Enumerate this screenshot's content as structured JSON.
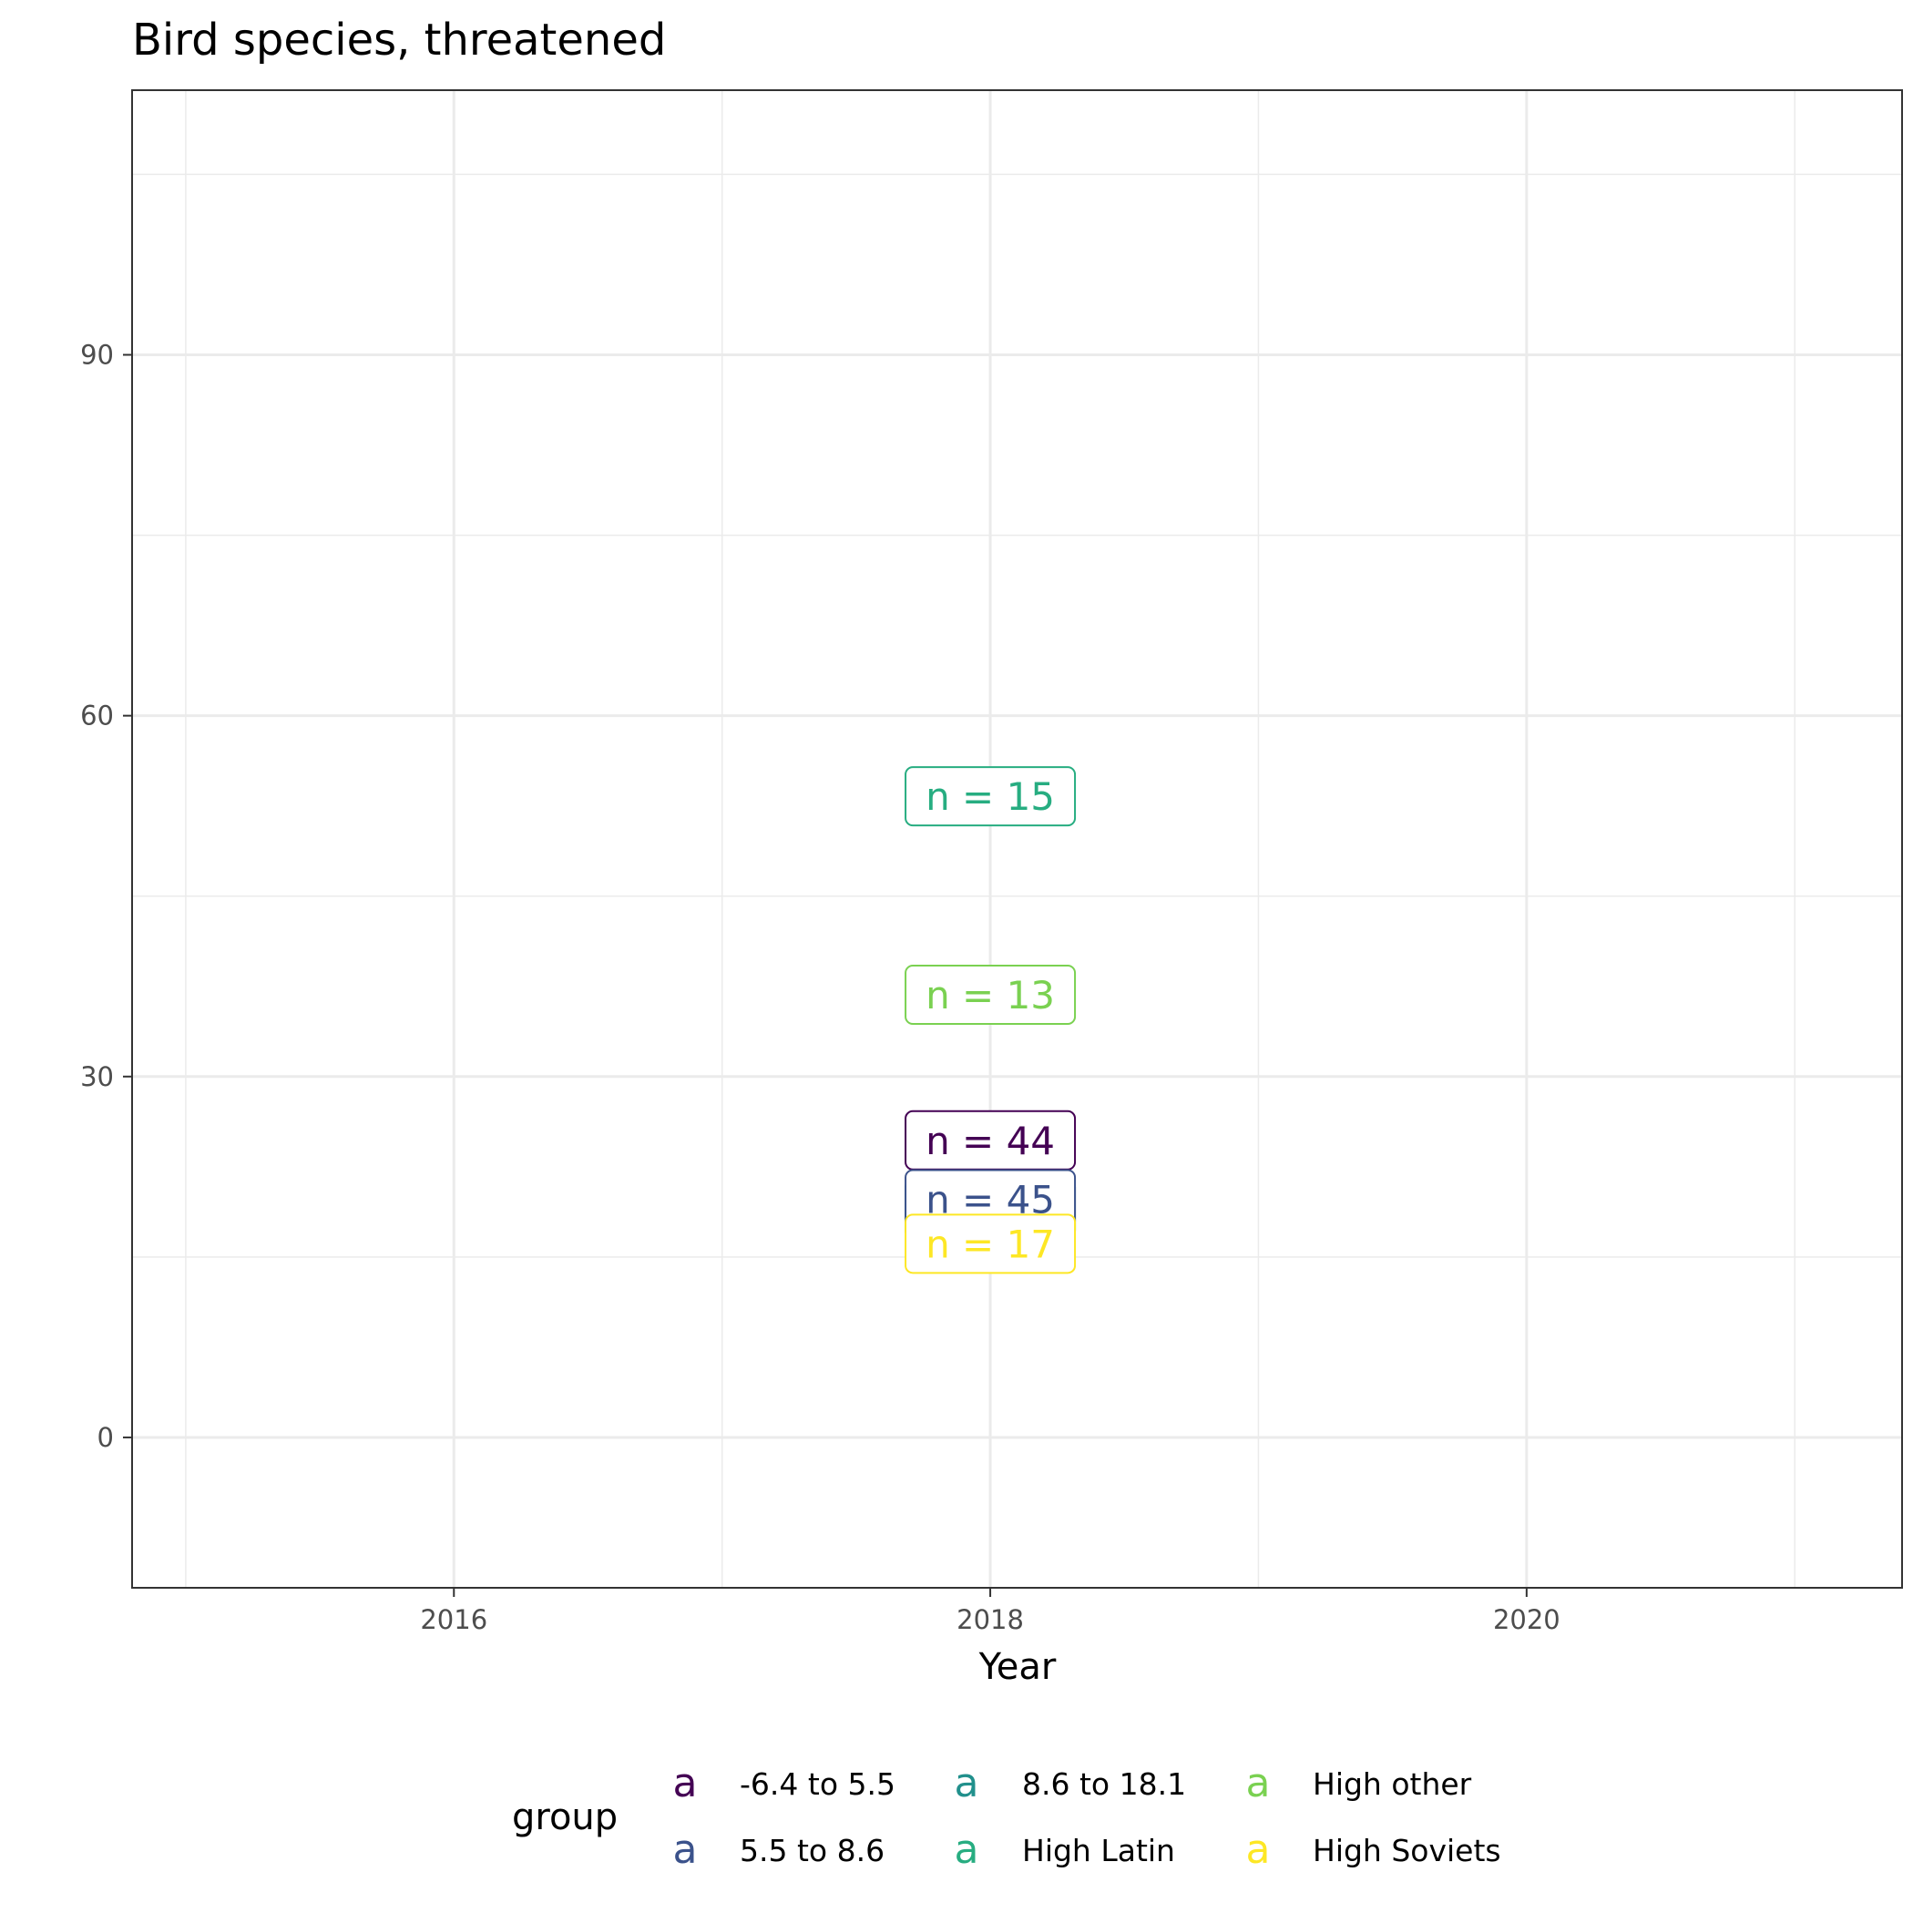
{
  "chart_data": {
    "type": "scatter",
    "geom": "label",
    "title": "Bird species, threatened",
    "xlabel": "Year",
    "ylabel": "",
    "xlim": [
      2014.8,
      2021.4
    ],
    "ylim": [
      -12.5,
      112
    ],
    "x_ticks": [
      2016,
      2018,
      2020
    ],
    "x_minor": [
      2015,
      2017,
      2019,
      2021
    ],
    "y_ticks": [
      0,
      30,
      60,
      90
    ],
    "y_minor": [
      15,
      45,
      75,
      105
    ],
    "grid": true,
    "legend": {
      "title": "group",
      "position": "bottom",
      "key_glyph": "a"
    },
    "series": [
      {
        "name": "-6.4 to 5.5",
        "color": "#440154",
        "x": 2018,
        "y": 24.7,
        "label": "n = 44"
      },
      {
        "name": "5.5 to 8.6",
        "color": "#3B528B",
        "x": 2018,
        "y": 19.8,
        "label": "n = 45"
      },
      {
        "name": "8.6 to 18.1",
        "color": "#21908C",
        "x": 2018,
        "y": 19.0,
        "label": "n = 45"
      },
      {
        "name": "High Latin",
        "color": "#27AD81",
        "x": 2018,
        "y": 53.3,
        "label": "n = 15"
      },
      {
        "name": "High other",
        "color": "#7AD151",
        "x": 2018,
        "y": 36.8,
        "label": "n = 13"
      },
      {
        "name": "High Soviets",
        "color": "#FDE725",
        "x": 2018,
        "y": 16.1,
        "label": "n = 17"
      }
    ]
  }
}
